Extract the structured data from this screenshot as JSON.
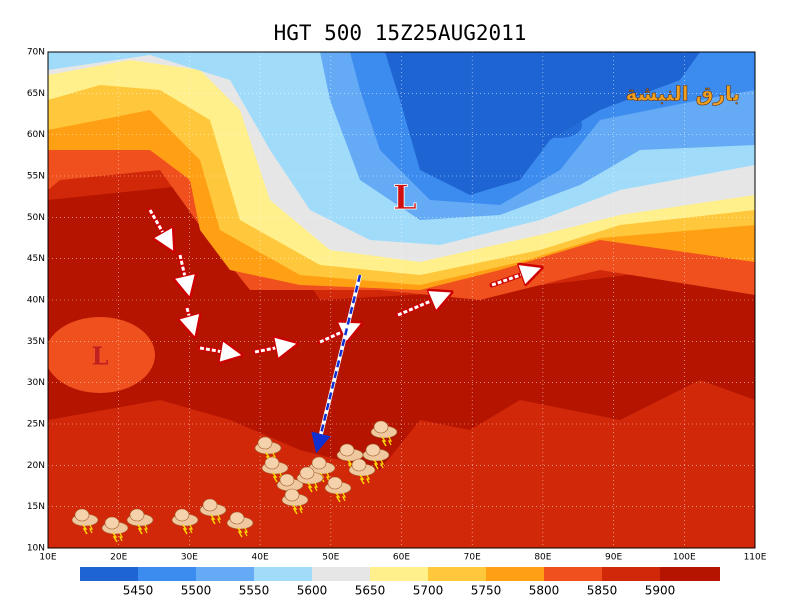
{
  "title": "HGT 500 15Z25AUG2011",
  "map": {
    "lon_range": [
      10,
      110
    ],
    "lat_range": [
      10,
      70
    ],
    "lon_ticks": [
      {
        "value": 10,
        "label": "10E"
      },
      {
        "value": 20,
        "label": "20E"
      },
      {
        "value": 30,
        "label": "30E"
      },
      {
        "value": 40,
        "label": "40E"
      },
      {
        "value": 50,
        "label": "50E"
      },
      {
        "value": 60,
        "label": "60E"
      },
      {
        "value": 70,
        "label": "70E"
      },
      {
        "value": 80,
        "label": "80E"
      },
      {
        "value": 90,
        "label": "90E"
      },
      {
        "value": 100,
        "label": "100E"
      },
      {
        "value": 110,
        "label": "110E"
      }
    ],
    "lat_ticks": [
      {
        "value": 10,
        "label": "10N"
      },
      {
        "value": 15,
        "label": "15N"
      },
      {
        "value": 20,
        "label": "20N"
      },
      {
        "value": 25,
        "label": "25N"
      },
      {
        "value": 30,
        "label": "30N"
      },
      {
        "value": 35,
        "label": "35N"
      },
      {
        "value": 40,
        "label": "40N"
      },
      {
        "value": 45,
        "label": "45N"
      },
      {
        "value": 50,
        "label": "50N"
      },
      {
        "value": 55,
        "label": "55N"
      },
      {
        "value": 60,
        "label": "60N"
      },
      {
        "value": 65,
        "label": "65N"
      },
      {
        "value": 70,
        "label": "70N"
      }
    ],
    "lows": [
      "L",
      "L"
    ]
  },
  "watermark": "بارق النبشة",
  "colorbar": {
    "levels": [
      5450,
      5500,
      5550,
      5600,
      5650,
      5700,
      5750,
      5800,
      5850,
      5900
    ],
    "colors": [
      "#1e64d2",
      "#3c8cf0",
      "#64aaf5",
      "#a0dcfa",
      "#e6e6e6",
      "#fff08c",
      "#ffc83c",
      "#ffa014",
      "#f0501e",
      "#d2280a",
      "#b41400"
    ]
  }
}
